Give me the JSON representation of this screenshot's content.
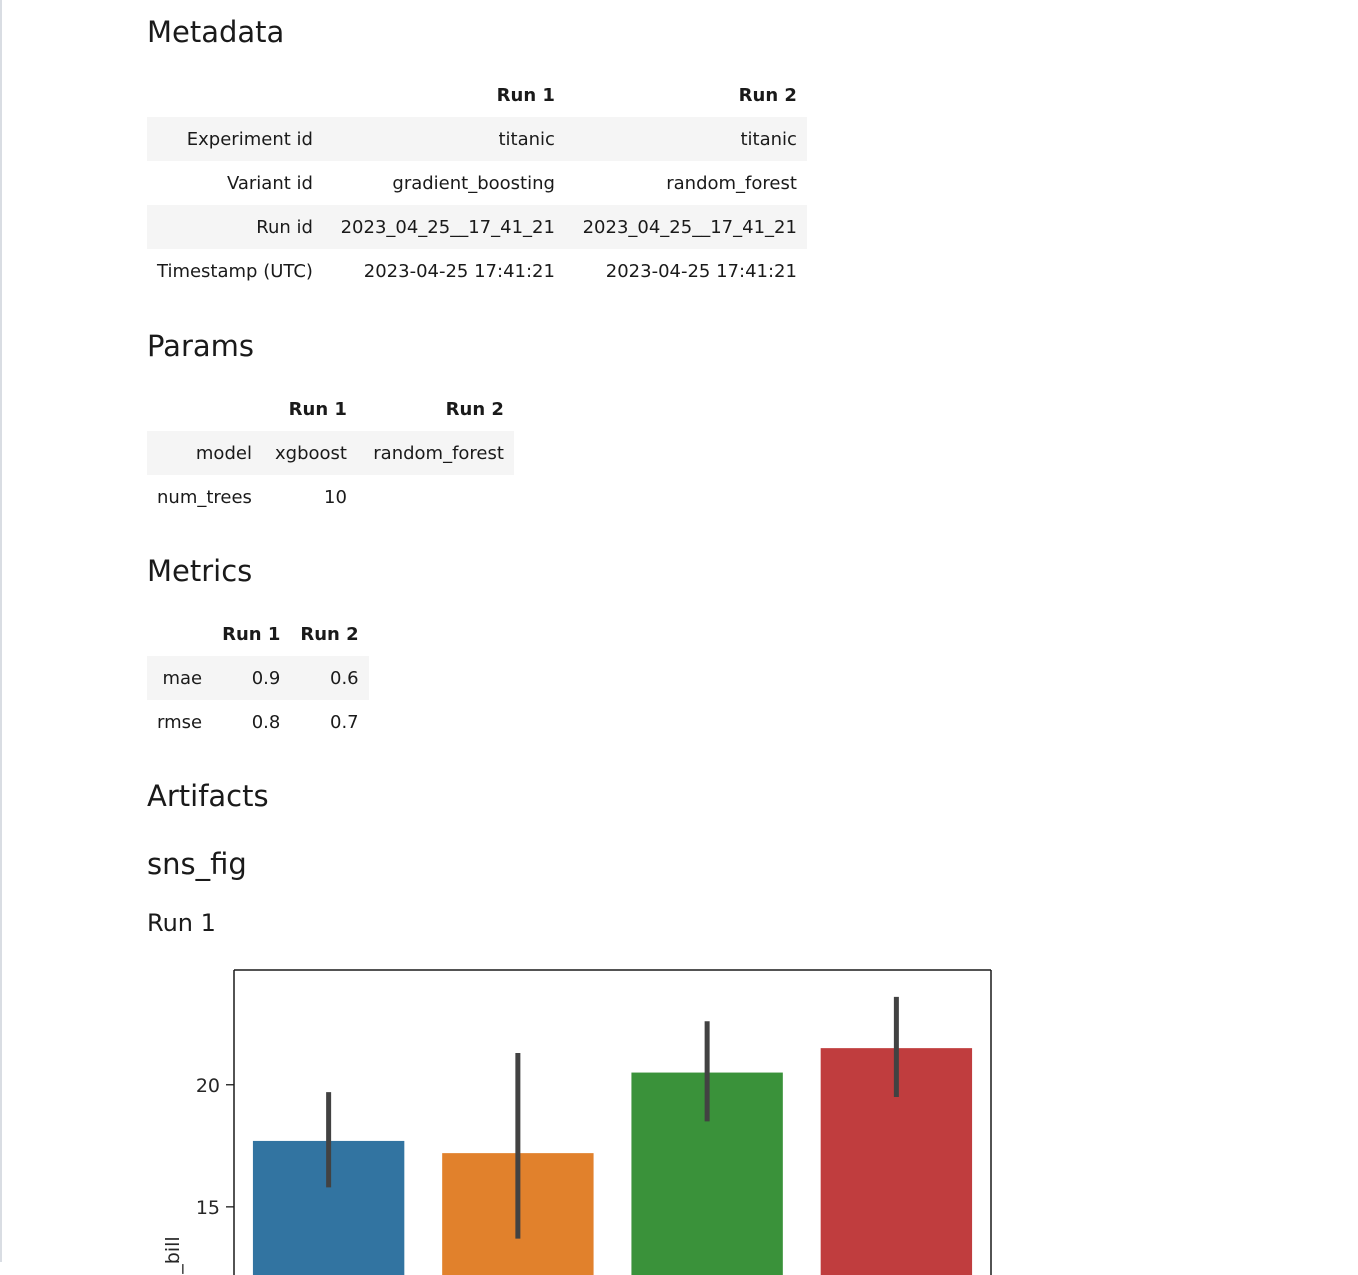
{
  "sections": {
    "metadata": "Metadata",
    "params": "Params",
    "metrics": "Metrics",
    "artifacts": "Artifacts",
    "artifact_name": "sns_fig",
    "run_heading": "Run 1"
  },
  "metadata_table": {
    "columns": [
      "",
      "Run 1",
      "Run 2"
    ],
    "rows": [
      {
        "label": "Experiment id",
        "run1": "titanic",
        "run2": "titanic"
      },
      {
        "label": "Variant id",
        "run1": "gradient_boosting",
        "run2": "random_forest"
      },
      {
        "label": "Run id",
        "run1": "2023_04_25__17_41_21",
        "run2": "2023_04_25__17_41_21"
      },
      {
        "label": "Timestamp (UTC)",
        "run1": "2023-04-25 17:41:21",
        "run2": "2023-04-25 17:41:21"
      }
    ]
  },
  "params_table": {
    "columns": [
      "",
      "Run 1",
      "Run 2"
    ],
    "rows": [
      {
        "label": "model",
        "run1": "xgboost",
        "run2": "random_forest"
      },
      {
        "label": "num_trees",
        "run1": "10",
        "run2": ""
      }
    ]
  },
  "metrics_table": {
    "columns": [
      "",
      "Run 1",
      "Run 2"
    ],
    "rows": [
      {
        "label": "mae",
        "run1": "0.9",
        "run2": "0.6"
      },
      {
        "label": "rmse",
        "run1": "0.8",
        "run2": "0.7"
      }
    ]
  },
  "chart_data": {
    "type": "bar",
    "title": "",
    "xlabel": "",
    "ylabel": "total_bill",
    "ylabel_visible_text": "l_bill",
    "categories": [
      "",
      "",
      "",
      ""
    ],
    "values": [
      17.7,
      17.2,
      20.5,
      21.5
    ],
    "error_low": [
      15.8,
      13.7,
      18.5,
      19.5
    ],
    "error_high": [
      19.7,
      21.3,
      22.6,
      23.6
    ],
    "colors": [
      "#3274a1",
      "#e1812c",
      "#3a923a",
      "#c03d3e"
    ],
    "error_color": "#424242",
    "yticks": [
      15,
      20
    ],
    "ytick_labels": [
      "15",
      "20"
    ],
    "ylim_visible": [
      11.8,
      24.7
    ],
    "grid": false
  }
}
